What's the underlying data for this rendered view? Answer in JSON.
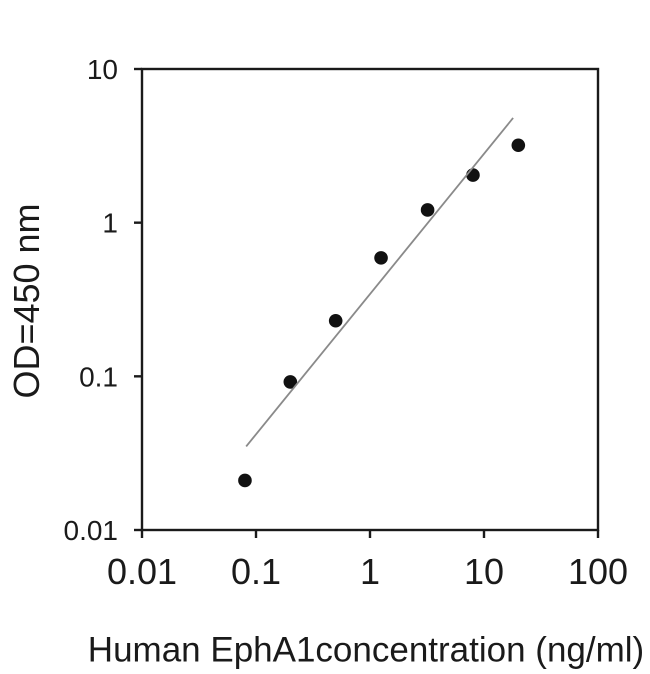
{
  "figure": {
    "background_color": "#ffffff",
    "text_color": "#1a1a1a"
  },
  "chart_data": {
    "type": "scatter",
    "title": "",
    "xlabel": "Human EphA1concentration (ng/ml)",
    "ylabel": "OD=450 nm",
    "x_scale": "log",
    "y_scale": "log",
    "xlim": [
      0.01,
      100
    ],
    "ylim": [
      0.01,
      10
    ],
    "grid": false,
    "legend": false,
    "axis_color": "#1a1a1a",
    "x_ticks": {
      "values": [
        0.01,
        0.1,
        1,
        10,
        100
      ],
      "labels": [
        "0.01",
        "0.1",
        "1",
        "10",
        "100"
      ]
    },
    "y_ticks": {
      "values": [
        10,
        1,
        0.1,
        0.01
      ],
      "labels": [
        "10",
        "1",
        "0.1",
        "0.01"
      ]
    },
    "series": [
      {
        "name": "standard-curve-points",
        "type": "scatter",
        "marker": "filled-circle",
        "color": "#111111",
        "x": [
          0.08,
          0.2,
          0.5,
          1.25,
          3.2,
          8,
          20
        ],
        "y": [
          0.021,
          0.092,
          0.23,
          0.59,
          1.21,
          2.04,
          3.19
        ]
      },
      {
        "name": "fit-line",
        "type": "line",
        "color": "#8a8a8a",
        "x": [
          0.082,
          18
        ],
        "y": [
          0.035,
          4.8
        ]
      }
    ]
  }
}
